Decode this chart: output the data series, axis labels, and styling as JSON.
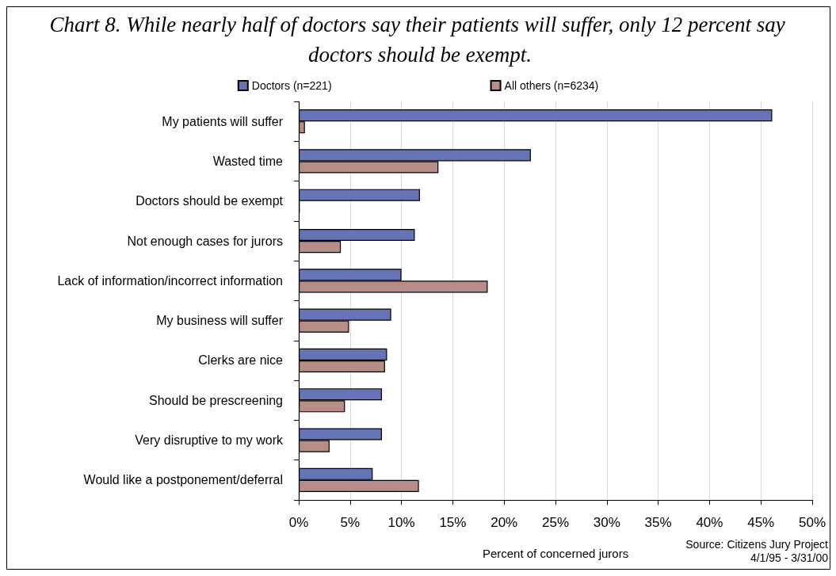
{
  "chart_data": {
    "type": "bar",
    "orientation": "horizontal",
    "title": "Chart 8. While nearly half of doctors say their patients will suffer, only 12 percent say doctors should be exempt.",
    "xlabel": "Percent of concerned jurors",
    "annotations": [
      "Source: Citizens Jury Project",
      "4/1/95 - 3/31/00"
    ],
    "categories": [
      "My patients will suffer",
      "Wasted time",
      "Doctors should be exempt",
      "Not enough cases for jurors",
      "Lack of information/incorrect information",
      "My business will suffer",
      "Clerks are nice",
      "Should be prescreening",
      "Very disruptive to my work",
      "Would like a postponement/deferral"
    ],
    "series": [
      {
        "name": "Doctors (n=221)",
        "color": "#6673b5",
        "values": [
          46.1,
          22.6,
          11.8,
          11.3,
          10.0,
          9.0,
          8.6,
          8.1,
          8.1,
          7.2
        ]
      },
      {
        "name": "All others (n=6234)",
        "color": "#b68d87",
        "values": [
          0.6,
          13.6,
          0.1,
          4.1,
          18.4,
          4.9,
          8.4,
          4.5,
          3.0,
          11.7
        ]
      }
    ],
    "xlim": [
      0,
      50
    ],
    "xticks": [
      {
        "value": 0,
        "label": "0%"
      },
      {
        "value": 5,
        "label": "5%"
      },
      {
        "value": 10,
        "label": "10%"
      },
      {
        "value": 15,
        "label": "15%"
      },
      {
        "value": 20,
        "label": "20%"
      },
      {
        "value": 25,
        "label": "25%"
      },
      {
        "value": 30,
        "label": "30%"
      },
      {
        "value": 35,
        "label": "35%"
      },
      {
        "value": 40,
        "label": "40%"
      },
      {
        "value": 45,
        "label": "45%"
      },
      {
        "value": 50,
        "label": "50%"
      }
    ],
    "grid": "x",
    "legend": "top"
  }
}
